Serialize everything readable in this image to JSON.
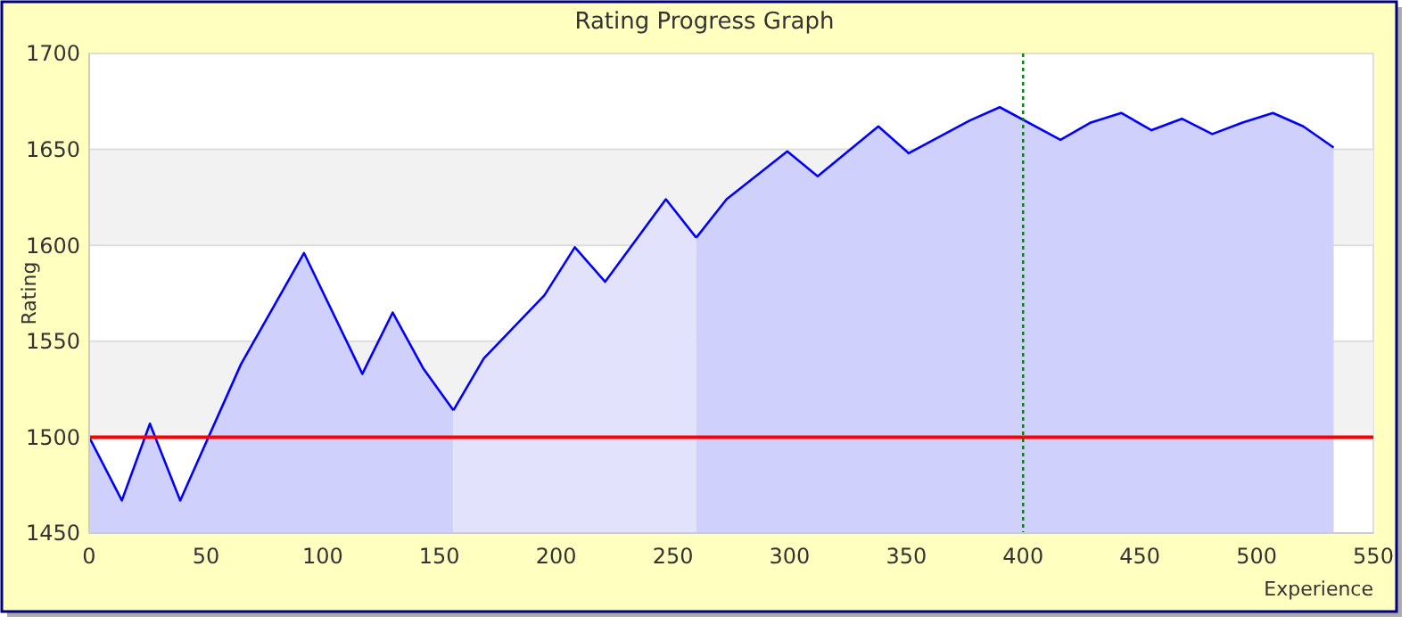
{
  "chart_data": {
    "type": "area",
    "title": "Rating Progress Graph",
    "xlabel": "Experience",
    "ylabel": "Rating",
    "xlim": [
      0,
      550
    ],
    "xticks": [
      0,
      50,
      100,
      150,
      200,
      250,
      300,
      350,
      400,
      450,
      500,
      550
    ],
    "ylim": [
      1450,
      1700
    ],
    "yticks": [
      1450,
      1500,
      1550,
      1600,
      1650,
      1700
    ],
    "grid": "y",
    "series": [
      {
        "color": "#d0d0fc",
        "x": [
          0,
          14,
          26,
          39,
          65,
          92,
          117,
          130,
          143,
          156
        ],
        "values": [
          1500,
          1467,
          1507,
          1467,
          1538,
          1596,
          1533,
          1565,
          1536,
          1514
        ]
      },
      {
        "color": "#e2e2fc",
        "x": [
          156,
          169,
          195,
          208,
          221,
          247,
          260
        ],
        "values": [
          1514,
          1541,
          1574,
          1599,
          1581,
          1624,
          1604
        ]
      },
      {
        "color": "#d0d0fc",
        "x": [
          260,
          273,
          299,
          312,
          338,
          351,
          377,
          390,
          416,
          429,
          442,
          455,
          468,
          481,
          494,
          507,
          520,
          533
        ],
        "values": [
          1604,
          1624,
          1649,
          1636,
          1662,
          1648,
          1665,
          1672,
          1655,
          1664,
          1669,
          1660,
          1666,
          1658,
          1664,
          1669,
          1662,
          1651
        ]
      }
    ],
    "ref_lines": [
      {
        "axis": "y",
        "value": 1500,
        "color": "#ff0000",
        "line_style": "solid"
      },
      {
        "axis": "x",
        "value": 400,
        "color": "#008000",
        "line_style": "dotted"
      }
    ]
  }
}
